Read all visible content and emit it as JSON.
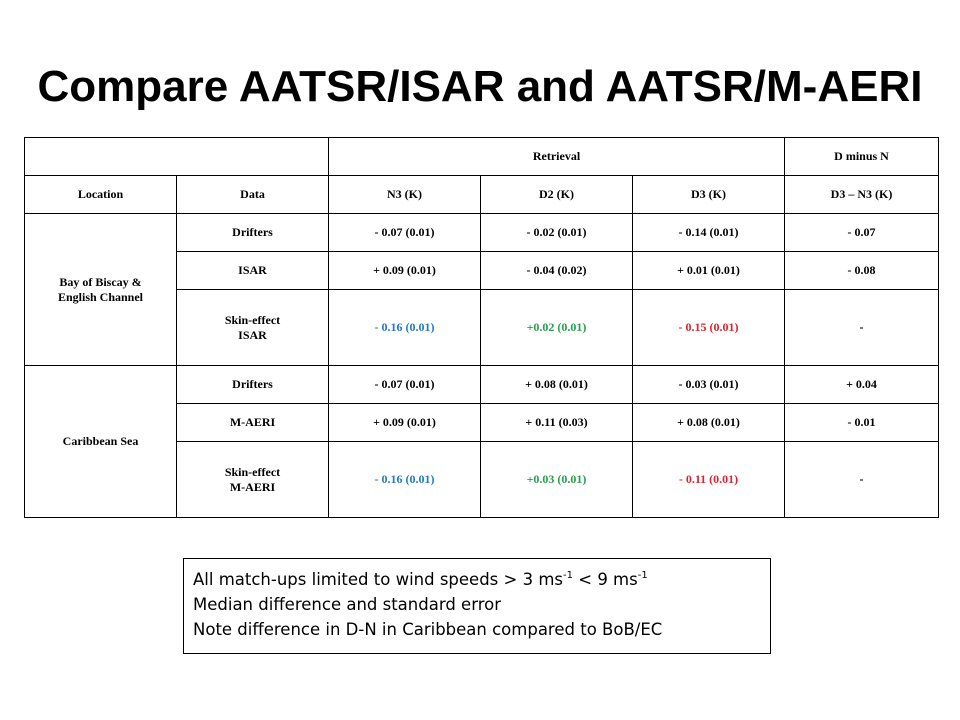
{
  "slide": {
    "title": "Compare AATSR/ISAR and AATSR/M-AERI"
  },
  "table": {
    "group_headers": {
      "retrieval": "Retrieval",
      "d_minus_n": "D minus N"
    },
    "columns": [
      "Location",
      "Data",
      "N3 (K)",
      "D2 (K)",
      "D3 (K)",
      "D3 – N3 (K)"
    ],
    "groups": [
      {
        "location_line1": "Bay of Biscay &",
        "location_line2": "English Channel",
        "rows": [
          {
            "data": "Drifters",
            "n3": "- 0.07 (0.01)",
            "d2": "- 0.02 (0.01)",
            "d3": "- 0.14 (0.01)",
            "dn": "- 0.07"
          },
          {
            "data": "ISAR",
            "n3": "+ 0.09 (0.01)",
            "d2": "- 0.04 (0.02)",
            "d3": "+ 0.01 (0.01)",
            "dn": "- 0.08"
          },
          {
            "data_line1": "Skin-effect",
            "data_line2": "ISAR",
            "n3": "- 0.16 (0.01)",
            "d2": "+0.02 (0.01)",
            "d3": "- 0.15 (0.01)",
            "dn": "-"
          }
        ]
      },
      {
        "location_line1": "Caribbean Sea",
        "rows": [
          {
            "data": "Drifters",
            "n3": "- 0.07 (0.01)",
            "d2": "+ 0.08 (0.01)",
            "d3": "- 0.03 (0.01)",
            "dn": "+ 0.04"
          },
          {
            "data": "M-AERI",
            "n3": "+ 0.09 (0.01)",
            "d2": "+ 0.11 (0.03)",
            "d3": "+ 0.08 (0.01)",
            "dn": "- 0.01"
          },
          {
            "data_line1": "Skin-effect",
            "data_line2": "M-AERI",
            "n3": "- 0.16 (0.01)",
            "d2": "+0.03 (0.01)",
            "d3": "- 0.11 (0.01)",
            "dn": "-"
          }
        ]
      }
    ],
    "colors": {
      "skin_n3": "#1f78c8",
      "skin_d2": "#22a04a",
      "skin_d3": "#e0202a"
    }
  },
  "note": {
    "line1_prefix": "All match-ups limited to wind speeds > 3 ms",
    "line1_exp1": "-1",
    "line1_middle": " < 9 ms",
    "line1_exp2": "-1",
    "line2": "Median difference and standard error",
    "line3": "Note difference in D-N in Caribbean compared to BoB/EC"
  }
}
